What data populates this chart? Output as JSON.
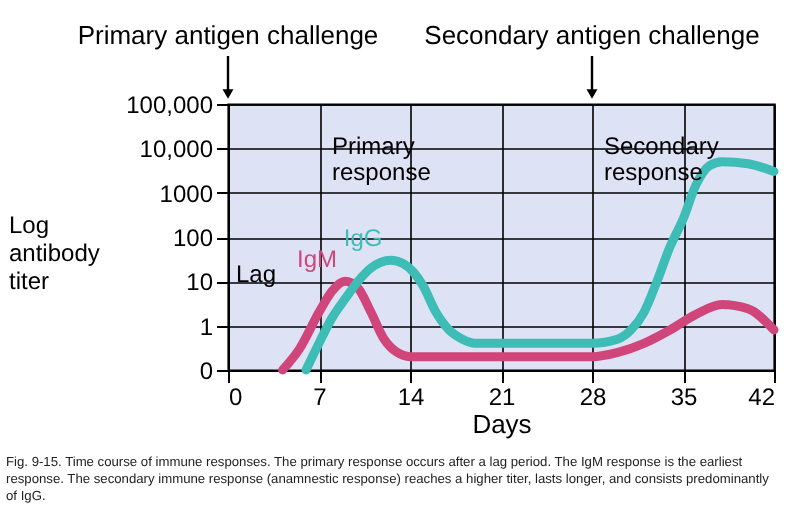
{
  "chart_data": {
    "type": "line",
    "xlabel": "Days",
    "ylabel": "Log antibody titer",
    "xlim": [
      0,
      42
    ],
    "xticks": [
      0,
      7,
      14,
      21,
      28,
      35,
      42
    ],
    "ylim": [
      0.1,
      100000
    ],
    "yticks": [
      {
        "value": 0.1,
        "label": "0"
      },
      1,
      10,
      100,
      1000,
      {
        "value": 10000,
        "label": "10,000"
      },
      {
        "value": 100000,
        "label": "100,000"
      }
    ],
    "log": "y",
    "grid": true,
    "legend": false,
    "marker": "none",
    "line_style": "solid",
    "series": [
      {
        "name": "IgM",
        "color": "#d0457a",
        "x": [
          4.2,
          5.5,
          7,
          8,
          9,
          10,
          11,
          12,
          13,
          14,
          21,
          28,
          30,
          32,
          34,
          36,
          38,
          40,
          42
        ],
        "values": [
          0.1,
          0.3,
          2,
          6,
          10,
          7,
          2,
          0.5,
          0.25,
          0.2,
          0.2,
          0.2,
          0.25,
          0.4,
          0.8,
          1.8,
          3,
          2.4,
          0.8
        ]
      },
      {
        "name": "IgG",
        "color": "#3dbdb5",
        "x": [
          6,
          7,
          8,
          9,
          10,
          11,
          12.5,
          13.5,
          15,
          16,
          17,
          18,
          19,
          21,
          28,
          30,
          31,
          32,
          33,
          34,
          35,
          36,
          37,
          38,
          40,
          42
        ],
        "values": [
          0.1,
          0.4,
          1.5,
          4,
          10,
          20,
          30,
          25,
          8,
          2,
          0.8,
          0.5,
          0.4,
          0.4,
          0.4,
          0.5,
          0.8,
          2,
          10,
          60,
          250,
          1500,
          4000,
          5000,
          4500,
          3000
        ]
      }
    ],
    "ref_lines": [
      {
        "axis": "x",
        "value": 0,
        "label": "Primary antigen challenge"
      },
      {
        "axis": "x",
        "value": 28,
        "label": "Secondary antigen challenge"
      }
    ],
    "annotations": [
      "Lag",
      "Primary response",
      "Secondary response",
      "Fig. 9-15. Time course of immune responses. The primary response occurs after a lag period. The IgM response is the earliest response. The secondary immune response (anamnestic response) reaches a higher titer, lasts longer, and consists predominantly of IgG."
    ]
  }
}
